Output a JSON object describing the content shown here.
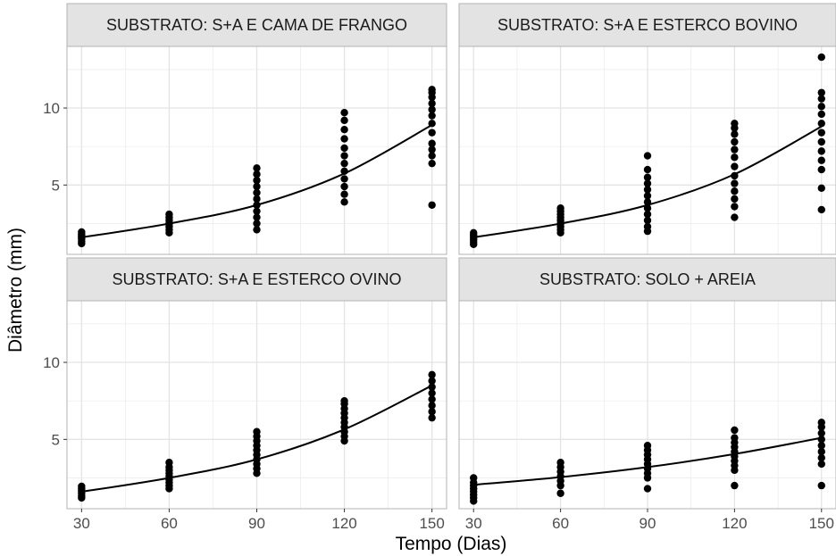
{
  "chart_data": {
    "type": "scatter",
    "xlabel": "Tempo (Dias)",
    "ylabel": "Diâmetro (mm)",
    "x_ticks": [
      30,
      60,
      90,
      120,
      150
    ],
    "y_ticks": [
      5,
      10
    ],
    "xlim": [
      25,
      155
    ],
    "ylim": [
      0.5,
      14
    ],
    "grid": true,
    "colors": {
      "points": "#000000",
      "strip_bg": "#e3e3e3",
      "grid": "#ebebeb",
      "panel_border": "#b3b3b3"
    },
    "panels": [
      {
        "title": "SUBSTRATO: S+A E CAMA DE FRANGO",
        "points": [
          {
            "x": 30,
            "ys": [
              1.2,
              1.35,
              1.5,
              1.6,
              1.7,
              1.8,
              1.95
            ]
          },
          {
            "x": 60,
            "ys": [
              1.9,
              2.1,
              2.3,
              2.5,
              2.7,
              2.9,
              3.1
            ]
          },
          {
            "x": 90,
            "ys": [
              2.1,
              2.5,
              2.9,
              3.3,
              3.7,
              4.1,
              4.5,
              4.9,
              5.3,
              5.7,
              6.1
            ]
          },
          {
            "x": 120,
            "ys": [
              3.9,
              4.4,
              4.9,
              5.4,
              5.9,
              6.4,
              6.9,
              7.4,
              8.0,
              8.6,
              9.2,
              9.7
            ]
          },
          {
            "x": 150,
            "ys": [
              3.7,
              6.4,
              6.9,
              7.3,
              7.7,
              8.4,
              9.0,
              9.5,
              9.9,
              10.3,
              10.7,
              11.0,
              11.2
            ]
          }
        ],
        "curve": [
          [
            30,
            1.6
          ],
          [
            60,
            2.5
          ],
          [
            90,
            3.7
          ],
          [
            120,
            5.75
          ],
          [
            150,
            8.9
          ]
        ]
      },
      {
        "title": "SUBSTRATO: S+A E ESTERCO BOVINO",
        "points": [
          {
            "x": 30,
            "ys": [
              1.15,
              1.3,
              1.45,
              1.6,
              1.75,
              1.9
            ]
          },
          {
            "x": 60,
            "ys": [
              1.9,
              2.1,
              2.3,
              2.5,
              2.7,
              2.9,
              3.1,
              3.3,
              3.5
            ]
          },
          {
            "x": 90,
            "ys": [
              2.0,
              2.3,
              2.7,
              3.1,
              3.5,
              3.9,
              4.3,
              4.7,
              5.1,
              5.5,
              6.0,
              6.9
            ]
          },
          {
            "x": 120,
            "ys": [
              2.9,
              3.6,
              4.1,
              4.6,
              5.1,
              5.6,
              6.2,
              6.8,
              7.3,
              7.8,
              8.3,
              8.7,
              9.0
            ]
          },
          {
            "x": 150,
            "ys": [
              3.4,
              4.8,
              6.0,
              6.6,
              7.2,
              7.8,
              8.4,
              9.0,
              9.6,
              10.1,
              10.6,
              11.0,
              13.3
            ]
          }
        ],
        "curve": [
          [
            30,
            1.6
          ],
          [
            60,
            2.5
          ],
          [
            90,
            3.7
          ],
          [
            120,
            5.7
          ],
          [
            150,
            8.8
          ]
        ]
      },
      {
        "title": "SUBSTRATO: S+A E ESTERCO OVINO",
        "points": [
          {
            "x": 30,
            "ys": [
              1.2,
              1.35,
              1.5,
              1.65,
              1.8,
              1.95
            ]
          },
          {
            "x": 60,
            "ys": [
              1.8,
              2.0,
              2.2,
              2.4,
              2.6,
              2.8,
              3.0,
              3.2,
              3.5
            ]
          },
          {
            "x": 90,
            "ys": [
              2.8,
              3.1,
              3.4,
              3.7,
              4.0,
              4.3,
              4.6,
              4.9,
              5.2,
              5.5
            ]
          },
          {
            "x": 120,
            "ys": [
              4.9,
              5.2,
              5.5,
              5.8,
              6.1,
              6.4,
              6.7,
              7.0,
              7.3,
              7.5
            ]
          },
          {
            "x": 150,
            "ys": [
              6.4,
              6.8,
              7.2,
              7.6,
              8.0,
              8.4,
              8.8,
              9.2
            ]
          }
        ],
        "curve": [
          [
            30,
            1.6
          ],
          [
            60,
            2.5
          ],
          [
            90,
            3.7
          ],
          [
            120,
            5.65
          ],
          [
            150,
            8.5
          ]
        ]
      },
      {
        "title": "SUBSTRATO: SOLO + AREIA",
        "points": [
          {
            "x": 30,
            "ys": [
              1.0,
              1.2,
              1.4,
              1.6,
              1.8,
              2.0,
              2.2,
              2.5
            ]
          },
          {
            "x": 60,
            "ys": [
              1.5,
              2.0,
              2.3,
              2.6,
              2.9,
              3.2,
              3.5
            ]
          },
          {
            "x": 90,
            "ys": [
              1.8,
              2.5,
              2.8,
              3.1,
              3.4,
              3.7,
              4.0,
              4.3,
              4.6
            ]
          },
          {
            "x": 120,
            "ys": [
              2.0,
              3.0,
              3.3,
              3.6,
              3.9,
              4.2,
              4.5,
              4.8,
              5.1,
              5.6
            ]
          },
          {
            "x": 150,
            "ys": [
              2.0,
              3.4,
              3.8,
              4.2,
              4.6,
              5.0,
              5.4,
              5.8,
              6.1
            ]
          }
        ],
        "curve": [
          [
            30,
            2.05
          ],
          [
            60,
            2.55
          ],
          [
            90,
            3.2
          ],
          [
            120,
            4.05
          ],
          [
            150,
            5.1
          ]
        ]
      }
    ]
  }
}
